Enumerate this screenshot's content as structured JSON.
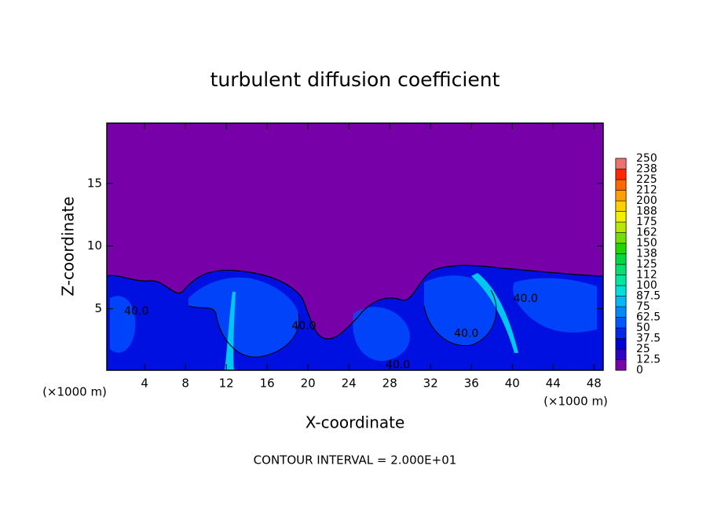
{
  "chart_data": {
    "type": "contour",
    "title": "turbulent diffusion coefficient",
    "x_label": "X-coordinate",
    "y_label": "Z-coordinate",
    "x_unit_left": "(×1000 m)",
    "x_unit_right": "(×1000 m)",
    "xlim": [
      0.3,
      48.9
    ],
    "ylim": [
      0.1,
      19.8
    ],
    "xticks": [
      4,
      8,
      12,
      16,
      20,
      24,
      28,
      32,
      36,
      40,
      44,
      48
    ],
    "yticks": [
      5,
      10,
      15
    ],
    "contour_labels": [
      {
        "value": 40,
        "label": "40.0",
        "x": 3.2,
        "z": 4.8
      },
      {
        "value": 40,
        "label": "40.0",
        "x": 19.6,
        "z": 3.6
      },
      {
        "value": 40,
        "label": "40.0",
        "x": 28.8,
        "z": 0.5
      },
      {
        "value": 40,
        "label": "40.0",
        "x": 35.5,
        "z": 3.0
      },
      {
        "value": 40,
        "label": "40.0",
        "x": 41.3,
        "z": 5.8
      }
    ],
    "colorbar": {
      "levels": [
        0,
        12.5,
        25,
        37.5,
        50,
        62.5,
        75,
        87.5,
        100,
        112,
        125,
        138,
        150,
        162,
        175,
        188,
        200,
        212,
        225,
        238,
        250
      ],
      "colors": [
        "#7800a8",
        "#3000c0",
        "#0000d8",
        "#0028f0",
        "#0058ff",
        "#0088ff",
        "#00b8f8",
        "#00e0d8",
        "#00e8a0",
        "#00e070",
        "#00d840",
        "#20d800",
        "#70e000",
        "#b8e800",
        "#f0f000",
        "#ffd000",
        "#ffa000",
        "#ff6800",
        "#ff2800",
        "#f07070"
      ]
    },
    "footer": "CONTOUR INTERVAL = 2.000E+01"
  }
}
